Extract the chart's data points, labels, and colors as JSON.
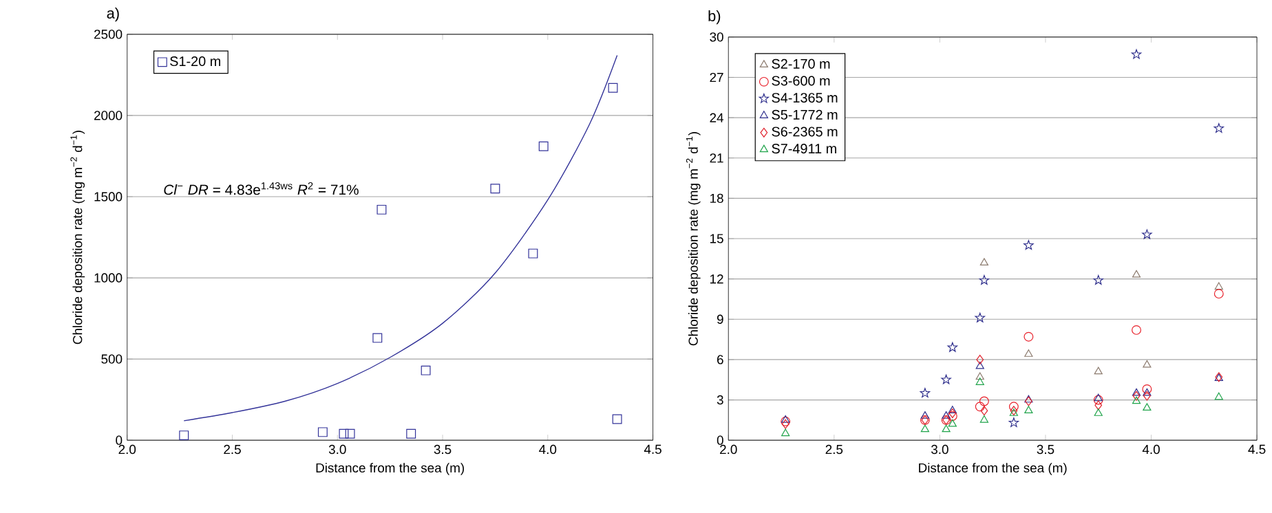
{
  "chart_data": [
    {
      "type": "scatter",
      "title": "a)",
      "xlabel": "Distance from the sea (m)",
      "ylabel": "Chloride deposition rate (mg m$^{−2}$ d$^{−1}$)",
      "xlim": [
        2.0,
        4.5
      ],
      "ylim": [
        0,
        2500
      ],
      "xticks": [
        {
          "value": 2.0,
          "label": "2.0"
        },
        {
          "value": 2.5,
          "label": "2.5"
        },
        {
          "value": 3.0,
          "label": "3.0"
        },
        {
          "value": 3.5,
          "label": "3.5"
        },
        {
          "value": 4.0,
          "label": "4.0"
        },
        {
          "value": 4.5,
          "label": "4.5"
        }
      ],
      "yticks": [
        0,
        500,
        1000,
        1500,
        2000,
        2500
      ],
      "grid": "y",
      "legend": "top left",
      "annotations": [
        "*Cl*$^{−}$ *DR* = 4.83e$^{1.43ws}$  *R*$^{2}$ = 71%"
      ],
      "series": [
        {
          "name": "S1-20 m",
          "color": "#333399",
          "marker": "square",
          "x": [
            2.27,
            2.93,
            3.03,
            3.06,
            3.35,
            3.19,
            3.21,
            3.42,
            3.75,
            3.93,
            3.98,
            4.31,
            4.33
          ],
          "values": [
            30,
            50,
            40,
            40,
            40,
            630,
            1420,
            430,
            1550,
            1150,
            1810,
            2170,
            130
          ]
        },
        {
          "type": "line",
          "color": "#333399",
          "x": [
            2.27,
            2.5,
            2.75,
            3.0,
            3.25,
            3.5,
            3.75,
            4.0,
            4.2,
            4.33
          ],
          "values": [
            120,
            170,
            240,
            350,
            510,
            720,
            1030,
            1480,
            1950,
            2370
          ]
        }
      ]
    },
    {
      "type": "scatter",
      "title": "b)",
      "xlabel": "Distance from the sea (m)",
      "ylabel": "Chloride deposition rate (mg m$^{−2}$ d$^{−1}$)",
      "xlim": [
        2.0,
        4.5
      ],
      "ylim": [
        0,
        30
      ],
      "xticks": [
        {
          "value": 2.0,
          "label": "2.0"
        },
        {
          "value": 2.5,
          "label": "2.5"
        },
        {
          "value": 3.0,
          "label": "3.0"
        },
        {
          "value": 3.5,
          "label": "3.5"
        },
        {
          "value": 4.0,
          "label": "4.0"
        },
        {
          "value": 4.5,
          "label": "4.5"
        }
      ],
      "yticks": [
        0,
        3,
        6,
        9,
        12,
        15,
        18,
        21,
        24,
        27,
        30
      ],
      "grid": "y",
      "legend": "top left",
      "x": [
        2.27,
        2.93,
        3.03,
        3.06,
        3.19,
        3.21,
        3.35,
        3.42,
        3.75,
        3.93,
        3.98,
        4.32
      ],
      "series": [
        {
          "name": "S2-170 m",
          "color": "#8c7b6e",
          "marker": "triangle",
          "values": [
            null,
            null,
            null,
            null,
            4.7,
            13.2,
            null,
            6.4,
            5.1,
            12.3,
            5.6,
            11.4
          ]
        },
        {
          "name": "S3-600 m",
          "color": "#e8202a",
          "marker": "circle",
          "values": [
            1.4,
            1.5,
            1.5,
            1.8,
            2.5,
            2.9,
            2.5,
            7.7,
            3.0,
            8.2,
            3.8,
            10.9
          ]
        },
        {
          "name": "S4-1365 m",
          "color": "#2e2e8c",
          "marker": "star",
          "values": [
            null,
            3.5,
            4.5,
            6.9,
            9.1,
            11.9,
            1.3,
            14.5,
            11.9,
            28.7,
            15.3,
            23.2
          ]
        },
        {
          "name": "S5-1772 m",
          "color": "#2e2e8c",
          "marker": "triangle",
          "values": [
            1.5,
            1.8,
            1.8,
            2.2,
            5.5,
            null,
            null,
            3.0,
            3.1,
            3.5,
            3.5,
            4.6
          ]
        },
        {
          "name": "S6-2365 m",
          "color": "#e0202a",
          "marker": "diamond",
          "values": [
            1.2,
            1.5,
            1.5,
            2.0,
            6.0,
            2.2,
            2.2,
            2.9,
            2.6,
            3.3,
            3.3,
            4.7
          ]
        },
        {
          "name": "S7-4911 m",
          "color": "#1fa34a",
          "marker": "triangle",
          "values": [
            0.5,
            0.8,
            0.8,
            1.2,
            4.3,
            1.5,
            2.0,
            2.2,
            2.0,
            2.9,
            2.4,
            3.2
          ]
        }
      ]
    }
  ]
}
